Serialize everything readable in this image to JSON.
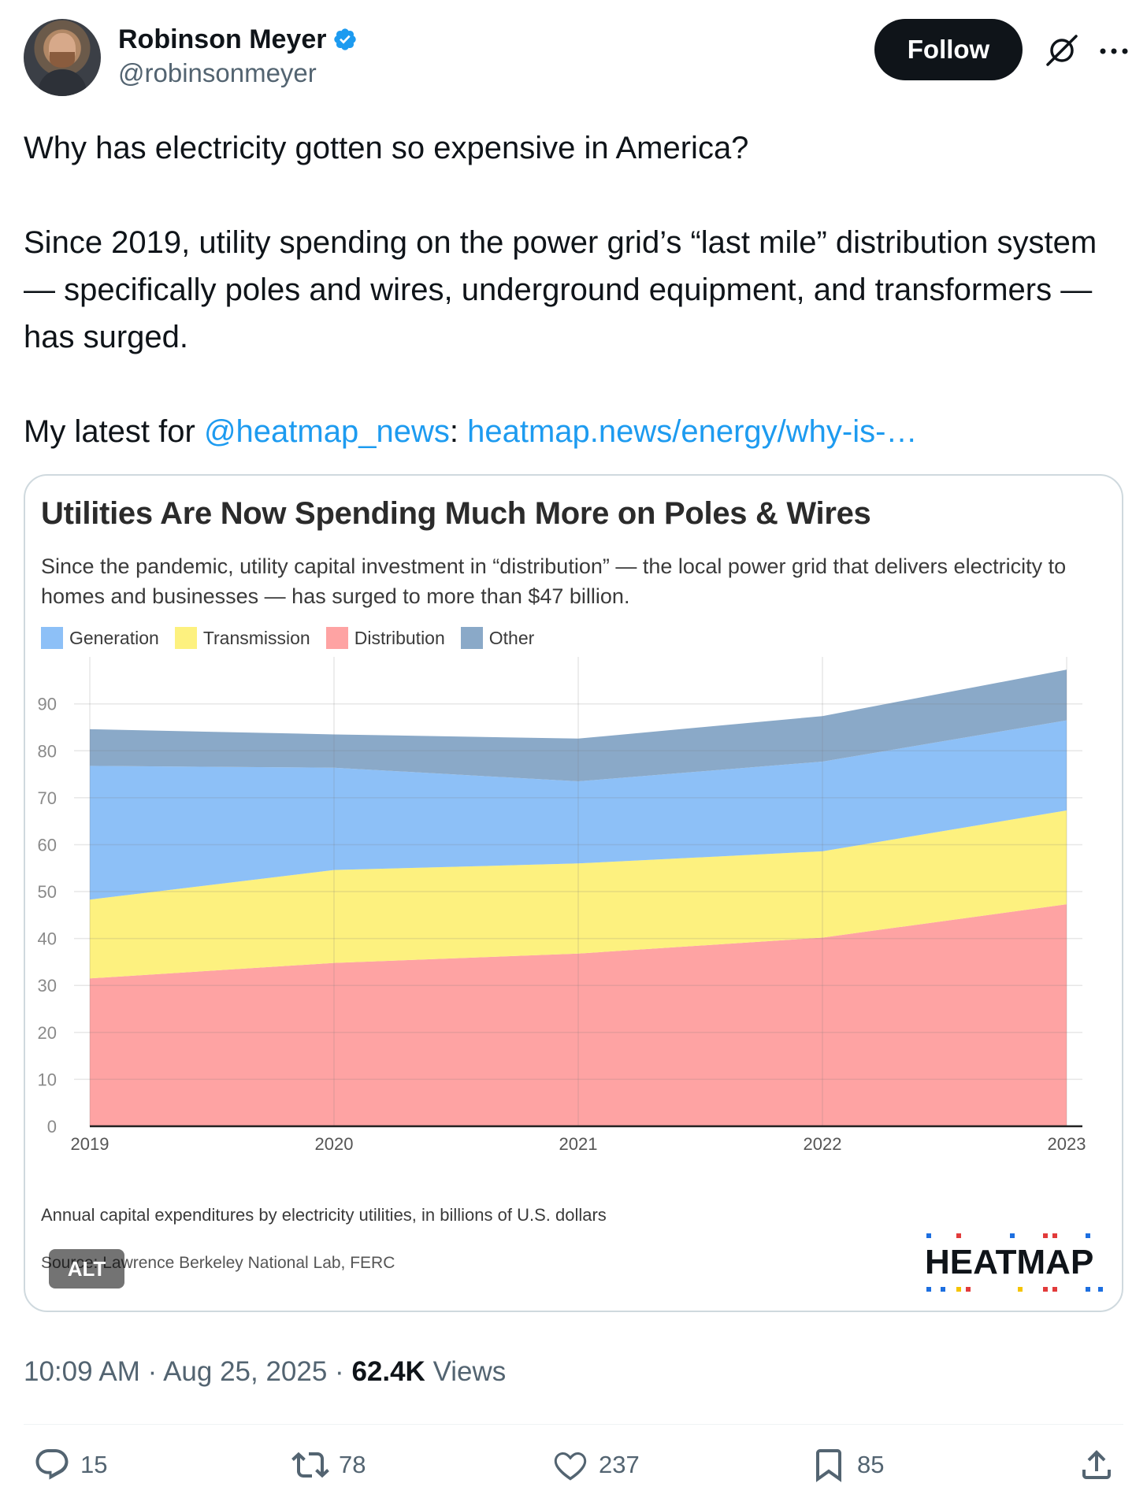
{
  "author": {
    "display_name": "Robinson Meyer",
    "handle": "@robinsonmeyer",
    "follow_label": "Follow"
  },
  "tweet": {
    "line1": "Why has electricity gotten so expensive in America?",
    "para2": "Since 2019, utility spending on the power grid’s “last mile” distribution system — specifically poles and wires, underground equipment, and transformers — has surged.",
    "para3_prefix": "My latest for ",
    "mention": "@heatmap_news",
    "para3_sep": ": ",
    "link_text": "heatmap.news/energy/why-is-…"
  },
  "media": {
    "alt_label": "ALT",
    "heatmap_word": "HEATMAP",
    "note": "Annual capital expenditures by electricity utilities, in billions of U.S. dollars",
    "source": "Source: Lawrence Berkeley National Lab, FERC"
  },
  "chart_data": {
    "type": "area",
    "stacked": true,
    "title": "Utilities Are Now Spending Much More on Poles & Wires",
    "subtitle": "Since the pandemic, utility capital investment in “distribution” — the local power grid that delivers electricity to homes and businesses — has surged to more than $47 billion.",
    "x": [
      "2019",
      "2020",
      "2021",
      "2022",
      "2023"
    ],
    "series": [
      {
        "name": "Distribution",
        "color": "#fea3a3",
        "values": [
          31.5,
          34.8,
          36.8,
          40.2,
          47.3
        ]
      },
      {
        "name": "Transmission",
        "color": "#fdf17f",
        "values": [
          16.8,
          19.8,
          19.2,
          18.4,
          20.0
        ]
      },
      {
        "name": "Generation",
        "color": "#8dc0f7",
        "values": [
          28.5,
          21.8,
          17.5,
          19.1,
          19.2
        ]
      },
      {
        "name": "Other",
        "color": "#8aa9c8",
        "values": [
          7.8,
          7.1,
          9.1,
          9.7,
          10.8
        ]
      }
    ],
    "legend": [
      "Generation",
      "Transmission",
      "Distribution",
      "Other"
    ],
    "legend_colors": [
      "#8dc0f7",
      "#fdf17f",
      "#fea3a3",
      "#8aa9c8"
    ],
    "y_ticks": [
      "0",
      "10",
      "20",
      "30",
      "40",
      "50",
      "60",
      "70",
      "80",
      "90"
    ],
    "ylim": [
      0,
      97
    ],
    "xlabel": "",
    "ylabel": ""
  },
  "meta": {
    "time": "10:09 AM",
    "sep1": " · ",
    "date": "Aug 25, 2025",
    "sep2": " · ",
    "views_count": "62.4K",
    "views_label": " Views"
  },
  "actions": {
    "replies": "15",
    "reposts": "78",
    "likes": "237",
    "bookmarks": "85"
  },
  "colors": {
    "accent": "#1d9bf0",
    "muted": "#536471"
  }
}
